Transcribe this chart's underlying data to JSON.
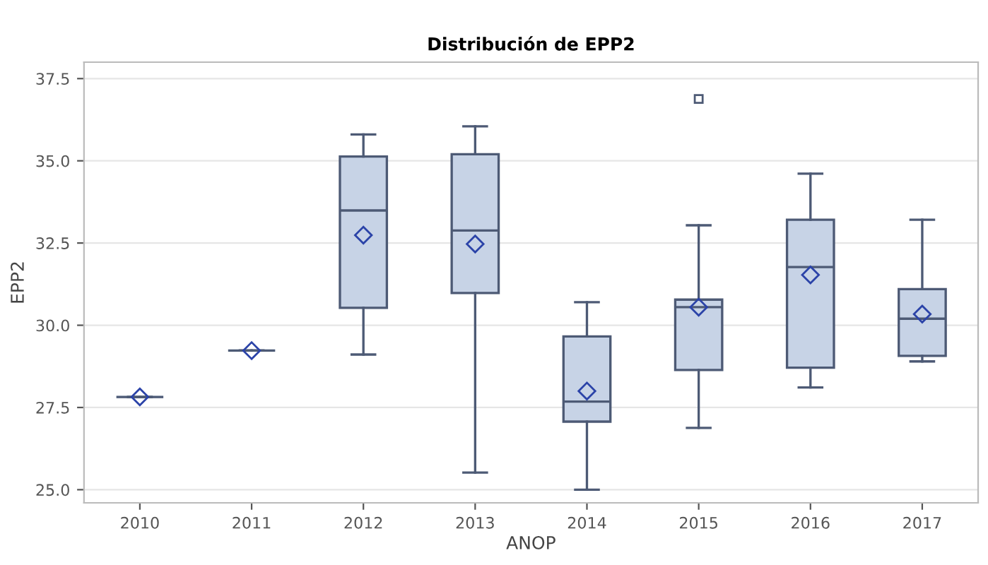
{
  "chart_data": {
    "type": "box",
    "title": "Distribución de EPP2",
    "xlabel": "ANOP",
    "ylabel": "EPP2",
    "categories": [
      "2010",
      "2011",
      "2012",
      "2013",
      "2014",
      "2015",
      "2016",
      "2017"
    ],
    "boxes": [
      {
        "low": 27.82,
        "q1": 27.82,
        "median": 27.82,
        "q3": 27.82,
        "high": 27.82,
        "mean": 27.82
      },
      {
        "low": 29.23,
        "q1": 29.23,
        "median": 29.23,
        "q3": 29.23,
        "high": 29.23,
        "mean": 29.23
      },
      {
        "low": 29.11,
        "q1": 30.53,
        "median": 33.49,
        "q3": 35.13,
        "high": 35.8,
        "mean": 32.74
      },
      {
        "low": 25.52,
        "q1": 30.98,
        "median": 32.88,
        "q3": 35.2,
        "high": 36.05,
        "mean": 32.47
      },
      {
        "low": 25.0,
        "q1": 27.07,
        "median": 27.68,
        "q3": 29.66,
        "high": 30.7,
        "mean": 28.0
      },
      {
        "low": 26.88,
        "q1": 28.64,
        "median": 30.55,
        "q3": 30.78,
        "high": 33.04,
        "mean": 30.55,
        "outliers": [
          36.88
        ]
      },
      {
        "low": 28.11,
        "q1": 28.71,
        "median": 31.77,
        "q3": 33.21,
        "high": 34.61,
        "mean": 31.53
      },
      {
        "low": 28.9,
        "q1": 29.07,
        "median": 30.2,
        "q3": 31.1,
        "high": 33.21,
        "mean": 30.34
      }
    ],
    "color": "#c7d3e6",
    "marker": "diamond",
    "grid": "y",
    "ylim": [
      24.6,
      38.0
    ],
    "yticks": [
      {
        "value": 25,
        "label": "25.0"
      },
      {
        "value": 27.5,
        "label": "27.5"
      },
      {
        "value": 30,
        "label": "30.0"
      },
      {
        "value": 32.5,
        "label": "32.5"
      },
      {
        "value": 35,
        "label": "35.0"
      },
      {
        "value": 37.5,
        "label": "37.5"
      }
    ]
  }
}
